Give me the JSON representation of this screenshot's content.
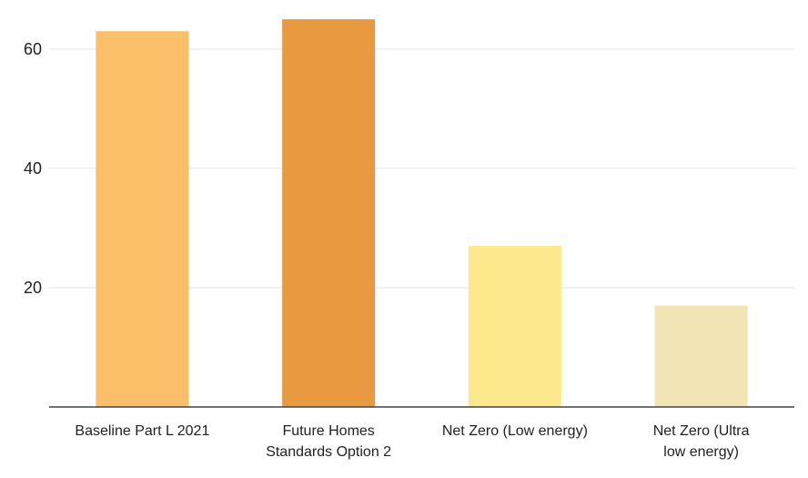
{
  "chart_data": {
    "type": "bar",
    "title": "",
    "xlabel": "",
    "ylabel": "",
    "ylim": [
      0,
      67
    ],
    "yticks": [
      20,
      40,
      60
    ],
    "grid": true,
    "categories": [
      [
        "Baseline Part L 2021"
      ],
      [
        "Future Homes",
        "Standards Option 2"
      ],
      [
        "Net Zero (Low energy)"
      ],
      [
        "Net Zero (Ultra",
        "low energy)"
      ]
    ],
    "values": [
      63,
      65,
      27,
      17
    ],
    "colors": [
      "#fbbf6a",
      "#e99a40",
      "#fde98c",
      "#f3e4b6"
    ]
  }
}
